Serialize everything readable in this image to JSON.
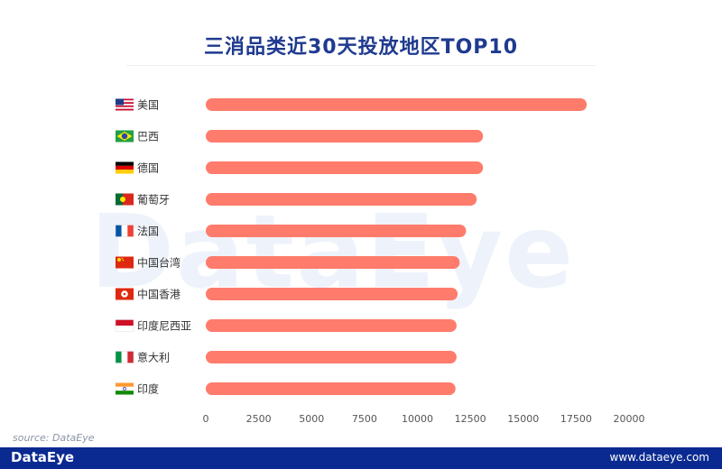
{
  "title": "三消品类近30天投放地区TOP10",
  "watermark": "DataEye",
  "source_label": "source:",
  "source_value": "DataEye",
  "footer": {
    "logo": "DataEye",
    "url": "www.dataeye.com"
  },
  "colors": {
    "bar": "#ff7b6b",
    "title": "#1f3a8f",
    "footer": "#0a2a91"
  },
  "chart_data": {
    "type": "bar",
    "orientation": "horizontal",
    "title": "三消品类近30天投放地区TOP10",
    "categories": [
      "美国",
      "巴西",
      "德国",
      "葡萄牙",
      "法国",
      "中国台湾",
      "中国香港",
      "印度尼西亚",
      "意大利",
      "印度"
    ],
    "flags": [
      "us-flag",
      "brazil-flag",
      "germany-flag",
      "portugal-flag",
      "france-flag",
      "taiwan-flag",
      "hongkong-flag",
      "indonesia-flag",
      "italy-flag",
      "india-flag"
    ],
    "values": [
      18000,
      13100,
      13100,
      12800,
      12300,
      12000,
      11900,
      11850,
      11850,
      11800
    ],
    "xlim": [
      0,
      20000
    ],
    "xticks": [
      0,
      2500,
      5000,
      7500,
      10000,
      12500,
      15000,
      17500,
      20000
    ],
    "grid": false,
    "legend": "none"
  }
}
